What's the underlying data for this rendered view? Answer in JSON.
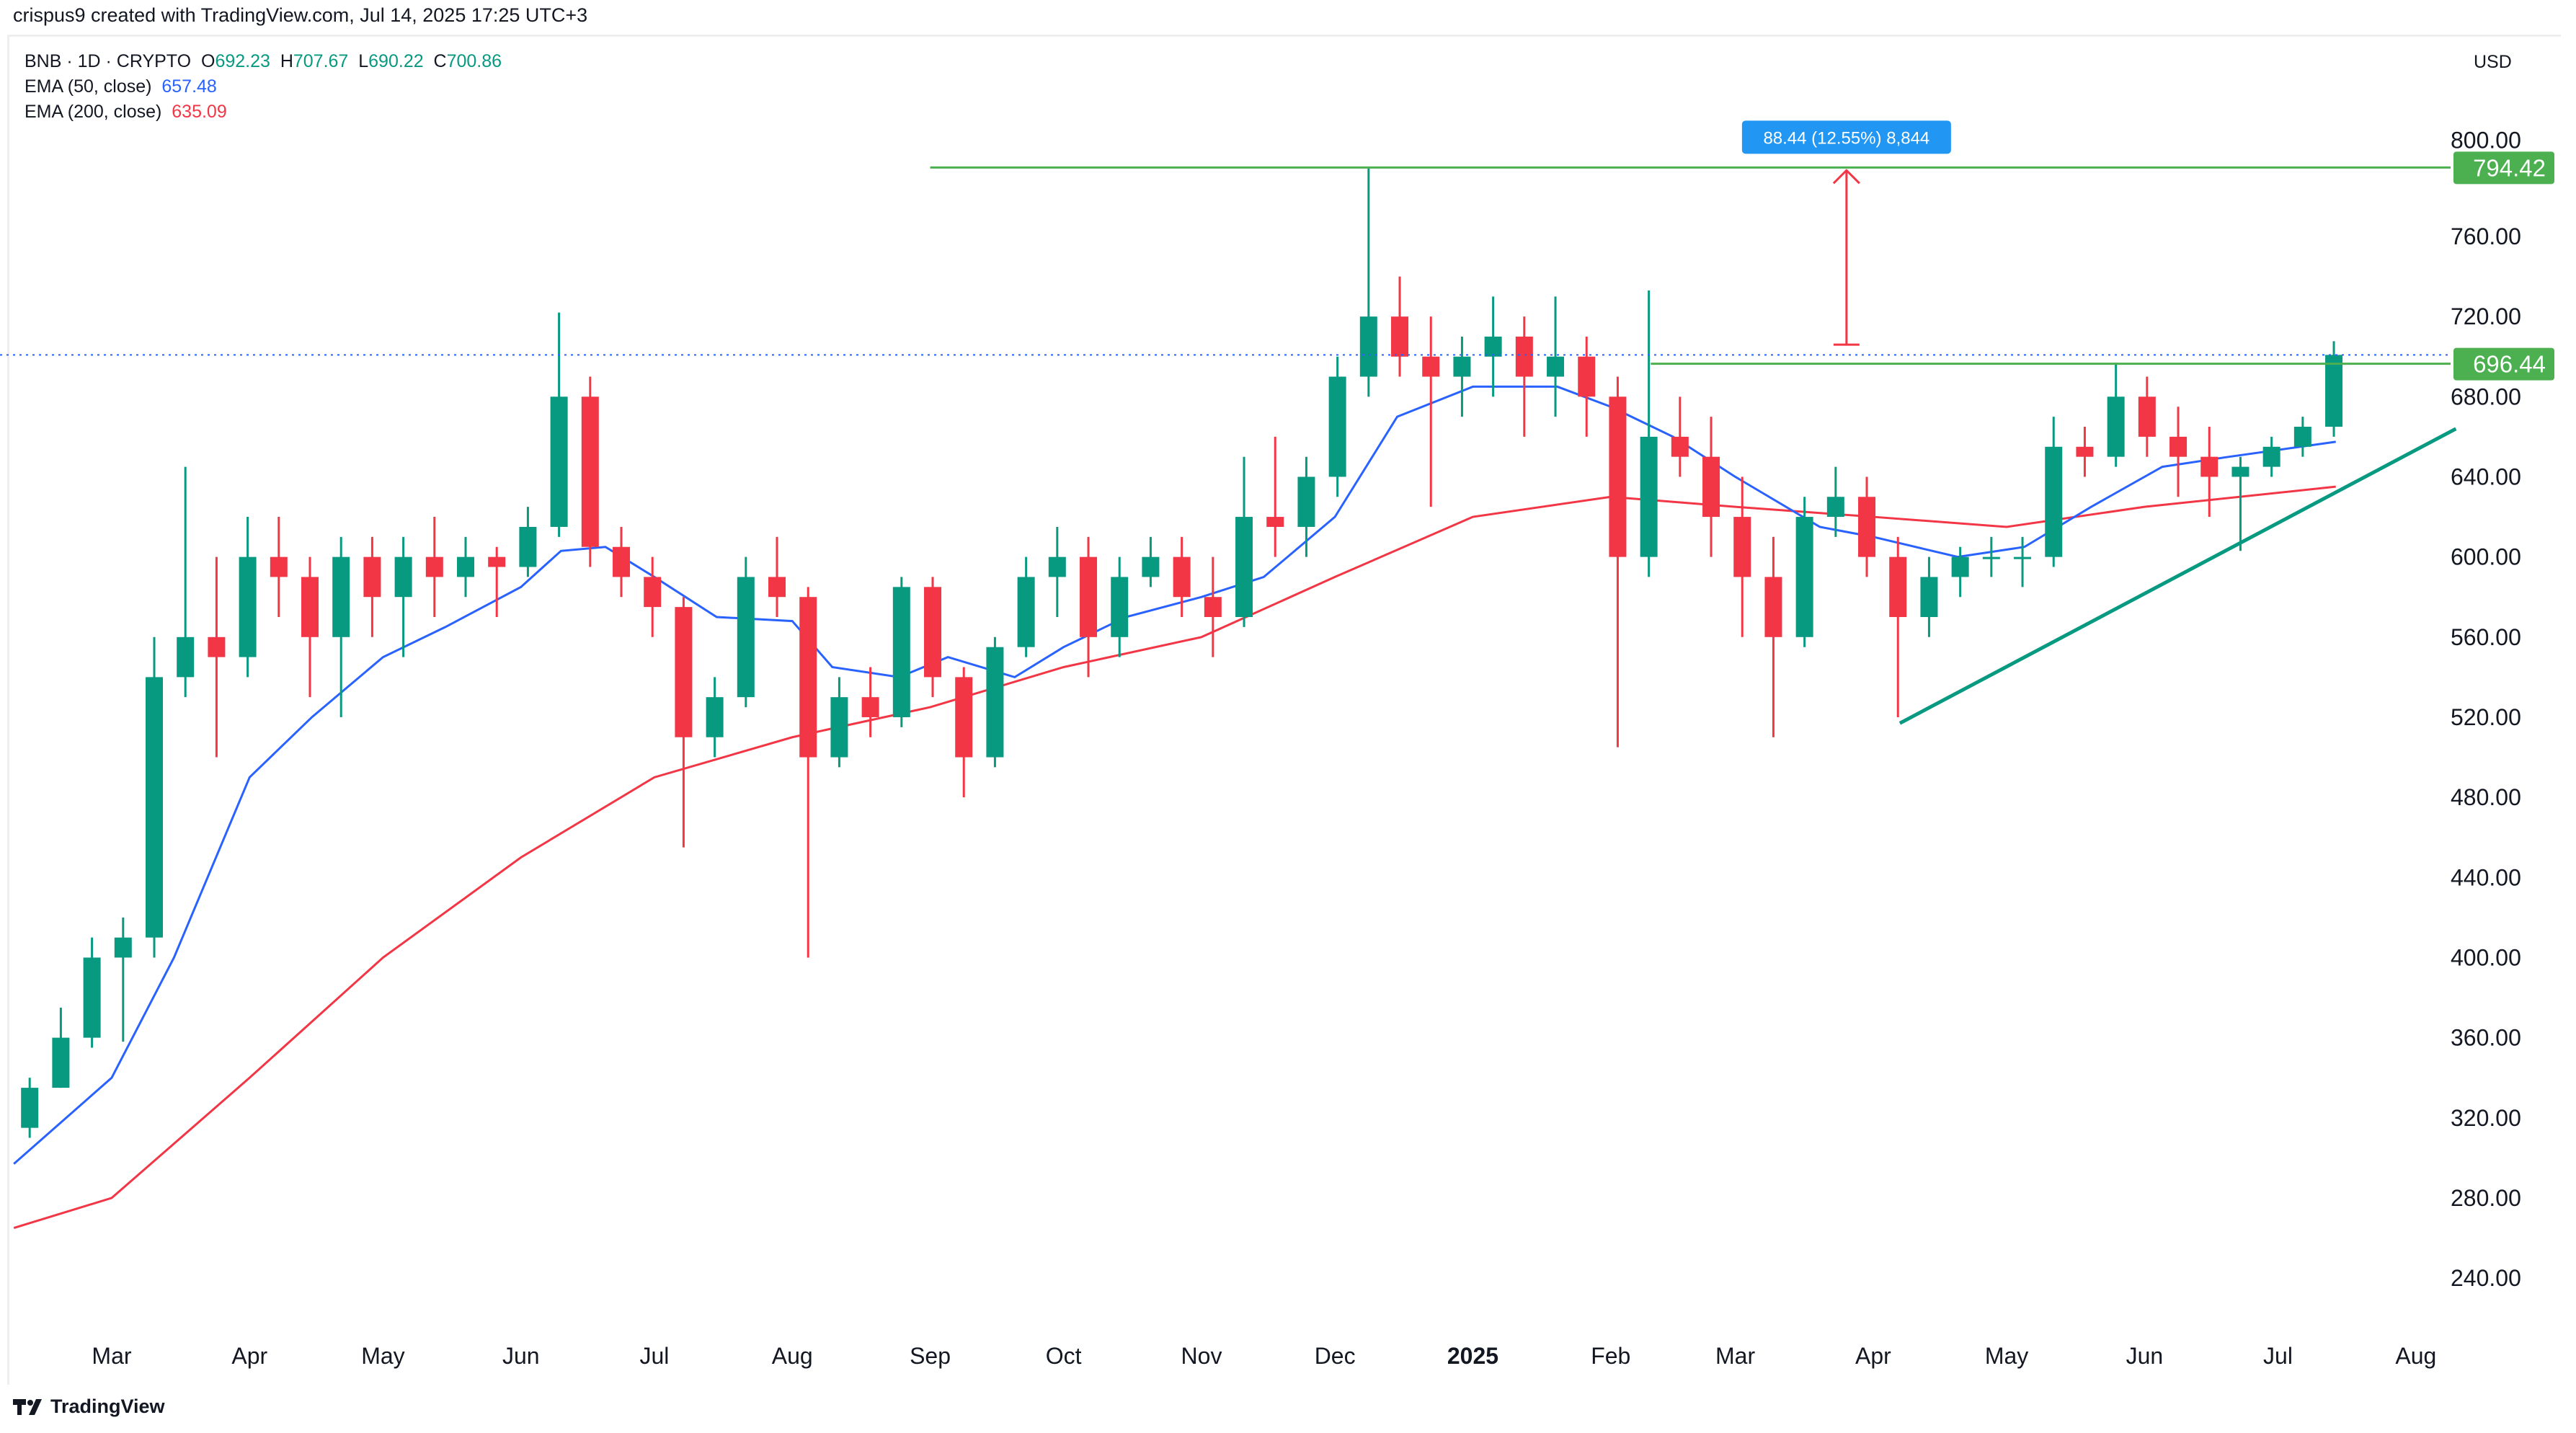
{
  "credit": "crispus9 created with TradingView.com, Jul 14, 2025 17:25 UTC+3",
  "legend": {
    "symbol": "BNB · 1D · CRYPTO",
    "open_label": "O",
    "open": "692.23",
    "high_label": "H",
    "high": "707.67",
    "low_label": "L",
    "low": "690.22",
    "close_label": "C",
    "close": "700.86",
    "ema50_label": "EMA (50, close)",
    "ema50": "657.48",
    "ema200_label": "EMA (200, close)",
    "ema200": "635.09"
  },
  "currency": "USD",
  "footer": {
    "brand": "TradingView"
  },
  "colors": {
    "up": "#089981",
    "down": "#f23645",
    "ema50": "#2962ff",
    "ema200": "#f23645",
    "level": "#4caf50",
    "trendline": "#089981",
    "measure": "#f23645",
    "measure_label": "#2196f3"
  },
  "chart_data": {
    "type": "candlestick",
    "ylim": [
      210,
      820
    ],
    "y_ticks": [
      "240.00",
      "280.00",
      "320.00",
      "360.00",
      "400.00",
      "440.00",
      "480.00",
      "520.00",
      "560.00",
      "600.00",
      "640.00",
      "680.00",
      "720.00",
      "760.00",
      "800.00"
    ],
    "x_ticks": [
      {
        "label": "Mar",
        "date": "2024-03-01"
      },
      {
        "label": "Apr",
        "date": "2024-04-01"
      },
      {
        "label": "May",
        "date": "2024-05-01"
      },
      {
        "label": "Jun",
        "date": "2024-06-01"
      },
      {
        "label": "Jul",
        "date": "2024-07-01"
      },
      {
        "label": "Aug",
        "date": "2024-08-01"
      },
      {
        "label": "Sep",
        "date": "2024-09-01"
      },
      {
        "label": "Oct",
        "date": "2024-10-01"
      },
      {
        "label": "Nov",
        "date": "2024-11-01"
      },
      {
        "label": "Dec",
        "date": "2024-12-01"
      },
      {
        "label": "2025",
        "date": "2025-01-01",
        "bold": true
      },
      {
        "label": "Feb",
        "date": "2025-02-01"
      },
      {
        "label": "Mar",
        "date": "2025-03-01"
      },
      {
        "label": "Apr",
        "date": "2025-04-01"
      },
      {
        "label": "May",
        "date": "2025-05-01"
      },
      {
        "label": "Jun",
        "date": "2025-06-01"
      },
      {
        "label": "Jul",
        "date": "2025-07-01"
      },
      {
        "label": "Aug",
        "date": "2025-08-01"
      }
    ],
    "candles_columns": [
      "date",
      "open",
      "high",
      "low",
      "close"
    ],
    "candles": [
      [
        "2024-02-08",
        315,
        340,
        310,
        335
      ],
      [
        "2024-02-15",
        335,
        375,
        335,
        360
      ],
      [
        "2024-02-22",
        360,
        410,
        355,
        400
      ],
      [
        "2024-02-29",
        400,
        420,
        358,
        410
      ],
      [
        "2024-03-07",
        410,
        560,
        400,
        540
      ],
      [
        "2024-03-14",
        540,
        645,
        530,
        560
      ],
      [
        "2024-03-21",
        560,
        600,
        500,
        550
      ],
      [
        "2024-03-28",
        550,
        620,
        540,
        600
      ],
      [
        "2024-04-04",
        600,
        620,
        570,
        590
      ],
      [
        "2024-04-11",
        590,
        600,
        530,
        560
      ],
      [
        "2024-04-18",
        560,
        610,
        520,
        600
      ],
      [
        "2024-04-25",
        600,
        610,
        560,
        580
      ],
      [
        "2024-05-02",
        580,
        610,
        550,
        600
      ],
      [
        "2024-05-09",
        600,
        620,
        570,
        590
      ],
      [
        "2024-05-16",
        590,
        610,
        580,
        600
      ],
      [
        "2024-05-23",
        600,
        605,
        570,
        595
      ],
      [
        "2024-05-30",
        595,
        625,
        590,
        615
      ],
      [
        "2024-06-06",
        615,
        722,
        610,
        680
      ],
      [
        "2024-06-13",
        680,
        690,
        595,
        605
      ],
      [
        "2024-06-20",
        605,
        615,
        580,
        590
      ],
      [
        "2024-06-27",
        590,
        600,
        560,
        575
      ],
      [
        "2024-07-04",
        575,
        580,
        455,
        510
      ],
      [
        "2024-07-11",
        510,
        540,
        500,
        530
      ],
      [
        "2024-07-18",
        530,
        600,
        525,
        590
      ],
      [
        "2024-07-25",
        590,
        610,
        570,
        580
      ],
      [
        "2024-08-01",
        580,
        585,
        400,
        500
      ],
      [
        "2024-08-08",
        500,
        540,
        495,
        530
      ],
      [
        "2024-08-15",
        530,
        545,
        510,
        520
      ],
      [
        "2024-08-22",
        520,
        590,
        515,
        585
      ],
      [
        "2024-08-29",
        585,
        590,
        530,
        540
      ],
      [
        "2024-09-05",
        540,
        545,
        480,
        500
      ],
      [
        "2024-09-12",
        500,
        560,
        495,
        555
      ],
      [
        "2024-09-19",
        555,
        600,
        550,
        590
      ],
      [
        "2024-09-26",
        590,
        615,
        570,
        600
      ],
      [
        "2024-10-03",
        600,
        610,
        540,
        560
      ],
      [
        "2024-10-10",
        560,
        600,
        550,
        590
      ],
      [
        "2024-10-17",
        590,
        610,
        585,
        600
      ],
      [
        "2024-10-24",
        600,
        610,
        570,
        580
      ],
      [
        "2024-10-31",
        580,
        600,
        550,
        570
      ],
      [
        "2024-11-07",
        570,
        650,
        565,
        620
      ],
      [
        "2024-11-14",
        620,
        660,
        600,
        615
      ],
      [
        "2024-11-21",
        615,
        650,
        600,
        640
      ],
      [
        "2024-11-28",
        640,
        700,
        630,
        690
      ],
      [
        "2024-12-05",
        690,
        794.42,
        680,
        720
      ],
      [
        "2024-12-12",
        720,
        740,
        690,
        700
      ],
      [
        "2024-12-19",
        700,
        720,
        625,
        690
      ],
      [
        "2024-12-26",
        690,
        710,
        670,
        700
      ],
      [
        "2025-01-02",
        700,
        730,
        680,
        710
      ],
      [
        "2025-01-09",
        710,
        720,
        660,
        690
      ],
      [
        "2025-01-16",
        690,
        730,
        670,
        700
      ],
      [
        "2025-01-23",
        700,
        710,
        660,
        680
      ],
      [
        "2025-01-30",
        680,
        690,
        505,
        600
      ],
      [
        "2025-02-06",
        600,
        733,
        590,
        660
      ],
      [
        "2025-02-13",
        660,
        680,
        640,
        650
      ],
      [
        "2025-02-20",
        650,
        670,
        600,
        620
      ],
      [
        "2025-02-27",
        620,
        640,
        560,
        590
      ],
      [
        "2025-03-06",
        590,
        610,
        510,
        560
      ],
      [
        "2025-03-13",
        560,
        630,
        555,
        620
      ],
      [
        "2025-03-20",
        620,
        645,
        610,
        630
      ],
      [
        "2025-03-27",
        630,
        640,
        590,
        600
      ],
      [
        "2025-04-03",
        600,
        610,
        520,
        570
      ],
      [
        "2025-04-10",
        570,
        600,
        560,
        590
      ],
      [
        "2025-04-17",
        590,
        605,
        580,
        600
      ],
      [
        "2025-04-24",
        600,
        610,
        590,
        600
      ],
      [
        "2025-05-01",
        600,
        610,
        585,
        600
      ],
      [
        "2025-05-08",
        600,
        670,
        595,
        655
      ],
      [
        "2025-05-15",
        655,
        665,
        640,
        650
      ],
      [
        "2025-05-22",
        650,
        697,
        645,
        680
      ],
      [
        "2025-05-29",
        680,
        690,
        650,
        660
      ],
      [
        "2025-06-05",
        660,
        675,
        630,
        650
      ],
      [
        "2025-06-12",
        650,
        665,
        620,
        640
      ],
      [
        "2025-06-19",
        640,
        650,
        603,
        645
      ],
      [
        "2025-06-26",
        645,
        660,
        640,
        655
      ],
      [
        "2025-07-03",
        655,
        670,
        650,
        665
      ],
      [
        "2025-07-10",
        665,
        707.67,
        660,
        700.86
      ]
    ],
    "series": [
      {
        "name": "EMA (50, close)",
        "points": [
          [
            "2024-02-08",
            297
          ],
          [
            "2024-03-01",
            340
          ],
          [
            "2024-03-15",
            400
          ],
          [
            "2024-04-01",
            490
          ],
          [
            "2024-04-15",
            520
          ],
          [
            "2024-05-01",
            550
          ],
          [
            "2024-05-15",
            565
          ],
          [
            "2024-06-01",
            585
          ],
          [
            "2024-06-10",
            603
          ],
          [
            "2024-06-20",
            605
          ],
          [
            "2024-07-01",
            590
          ],
          [
            "2024-07-15",
            570
          ],
          [
            "2024-08-01",
            568
          ],
          [
            "2024-08-10",
            545
          ],
          [
            "2024-08-25",
            540
          ],
          [
            "2024-09-05",
            550
          ],
          [
            "2024-09-20",
            540
          ],
          [
            "2024-10-01",
            555
          ],
          [
            "2024-10-15",
            570
          ],
          [
            "2024-11-01",
            580
          ],
          [
            "2024-11-15",
            590
          ],
          [
            "2024-12-01",
            620
          ],
          [
            "2024-12-15",
            670
          ],
          [
            "2025-01-01",
            685
          ],
          [
            "2025-01-20",
            685
          ],
          [
            "2025-02-01",
            675
          ],
          [
            "2025-02-15",
            660
          ],
          [
            "2025-03-01",
            640
          ],
          [
            "2025-03-20",
            615
          ],
          [
            "2025-04-01",
            610
          ],
          [
            "2025-04-20",
            600
          ],
          [
            "2025-05-05",
            605
          ],
          [
            "2025-05-20",
            625
          ],
          [
            "2025-06-05",
            645
          ],
          [
            "2025-06-20",
            650
          ],
          [
            "2025-07-14",
            657.48
          ]
        ]
      },
      {
        "name": "EMA (200, close)",
        "points": [
          [
            "2024-02-08",
            265
          ],
          [
            "2024-03-01",
            280
          ],
          [
            "2024-04-01",
            340
          ],
          [
            "2024-05-01",
            400
          ],
          [
            "2024-06-01",
            450
          ],
          [
            "2024-07-01",
            490
          ],
          [
            "2024-08-01",
            510
          ],
          [
            "2024-09-01",
            525
          ],
          [
            "2024-10-01",
            545
          ],
          [
            "2024-11-01",
            560
          ],
          [
            "2024-12-01",
            590
          ],
          [
            "2025-01-01",
            620
          ],
          [
            "2025-02-01",
            630
          ],
          [
            "2025-03-01",
            625
          ],
          [
            "2025-04-01",
            620
          ],
          [
            "2025-05-01",
            615
          ],
          [
            "2025-06-01",
            625
          ],
          [
            "2025-07-14",
            635.09
          ]
        ]
      }
    ],
    "annotations": {
      "resistance_high": {
        "value": 794.42,
        "label": "794.42",
        "from": "2024-09-01"
      },
      "resistance_low": {
        "value": 696.44,
        "label": "696.44",
        "from": "2025-02-10"
      },
      "current_price_line": 700.86,
      "measure": {
        "date": "2025-03-26",
        "from": 706,
        "to": 794.42,
        "label": "88.44 (12.55%) 8,844"
      },
      "trendline": {
        "start": [
          "2025-04-07",
          517
        ],
        "end": [
          "2025-08-10",
          664
        ]
      }
    }
  }
}
